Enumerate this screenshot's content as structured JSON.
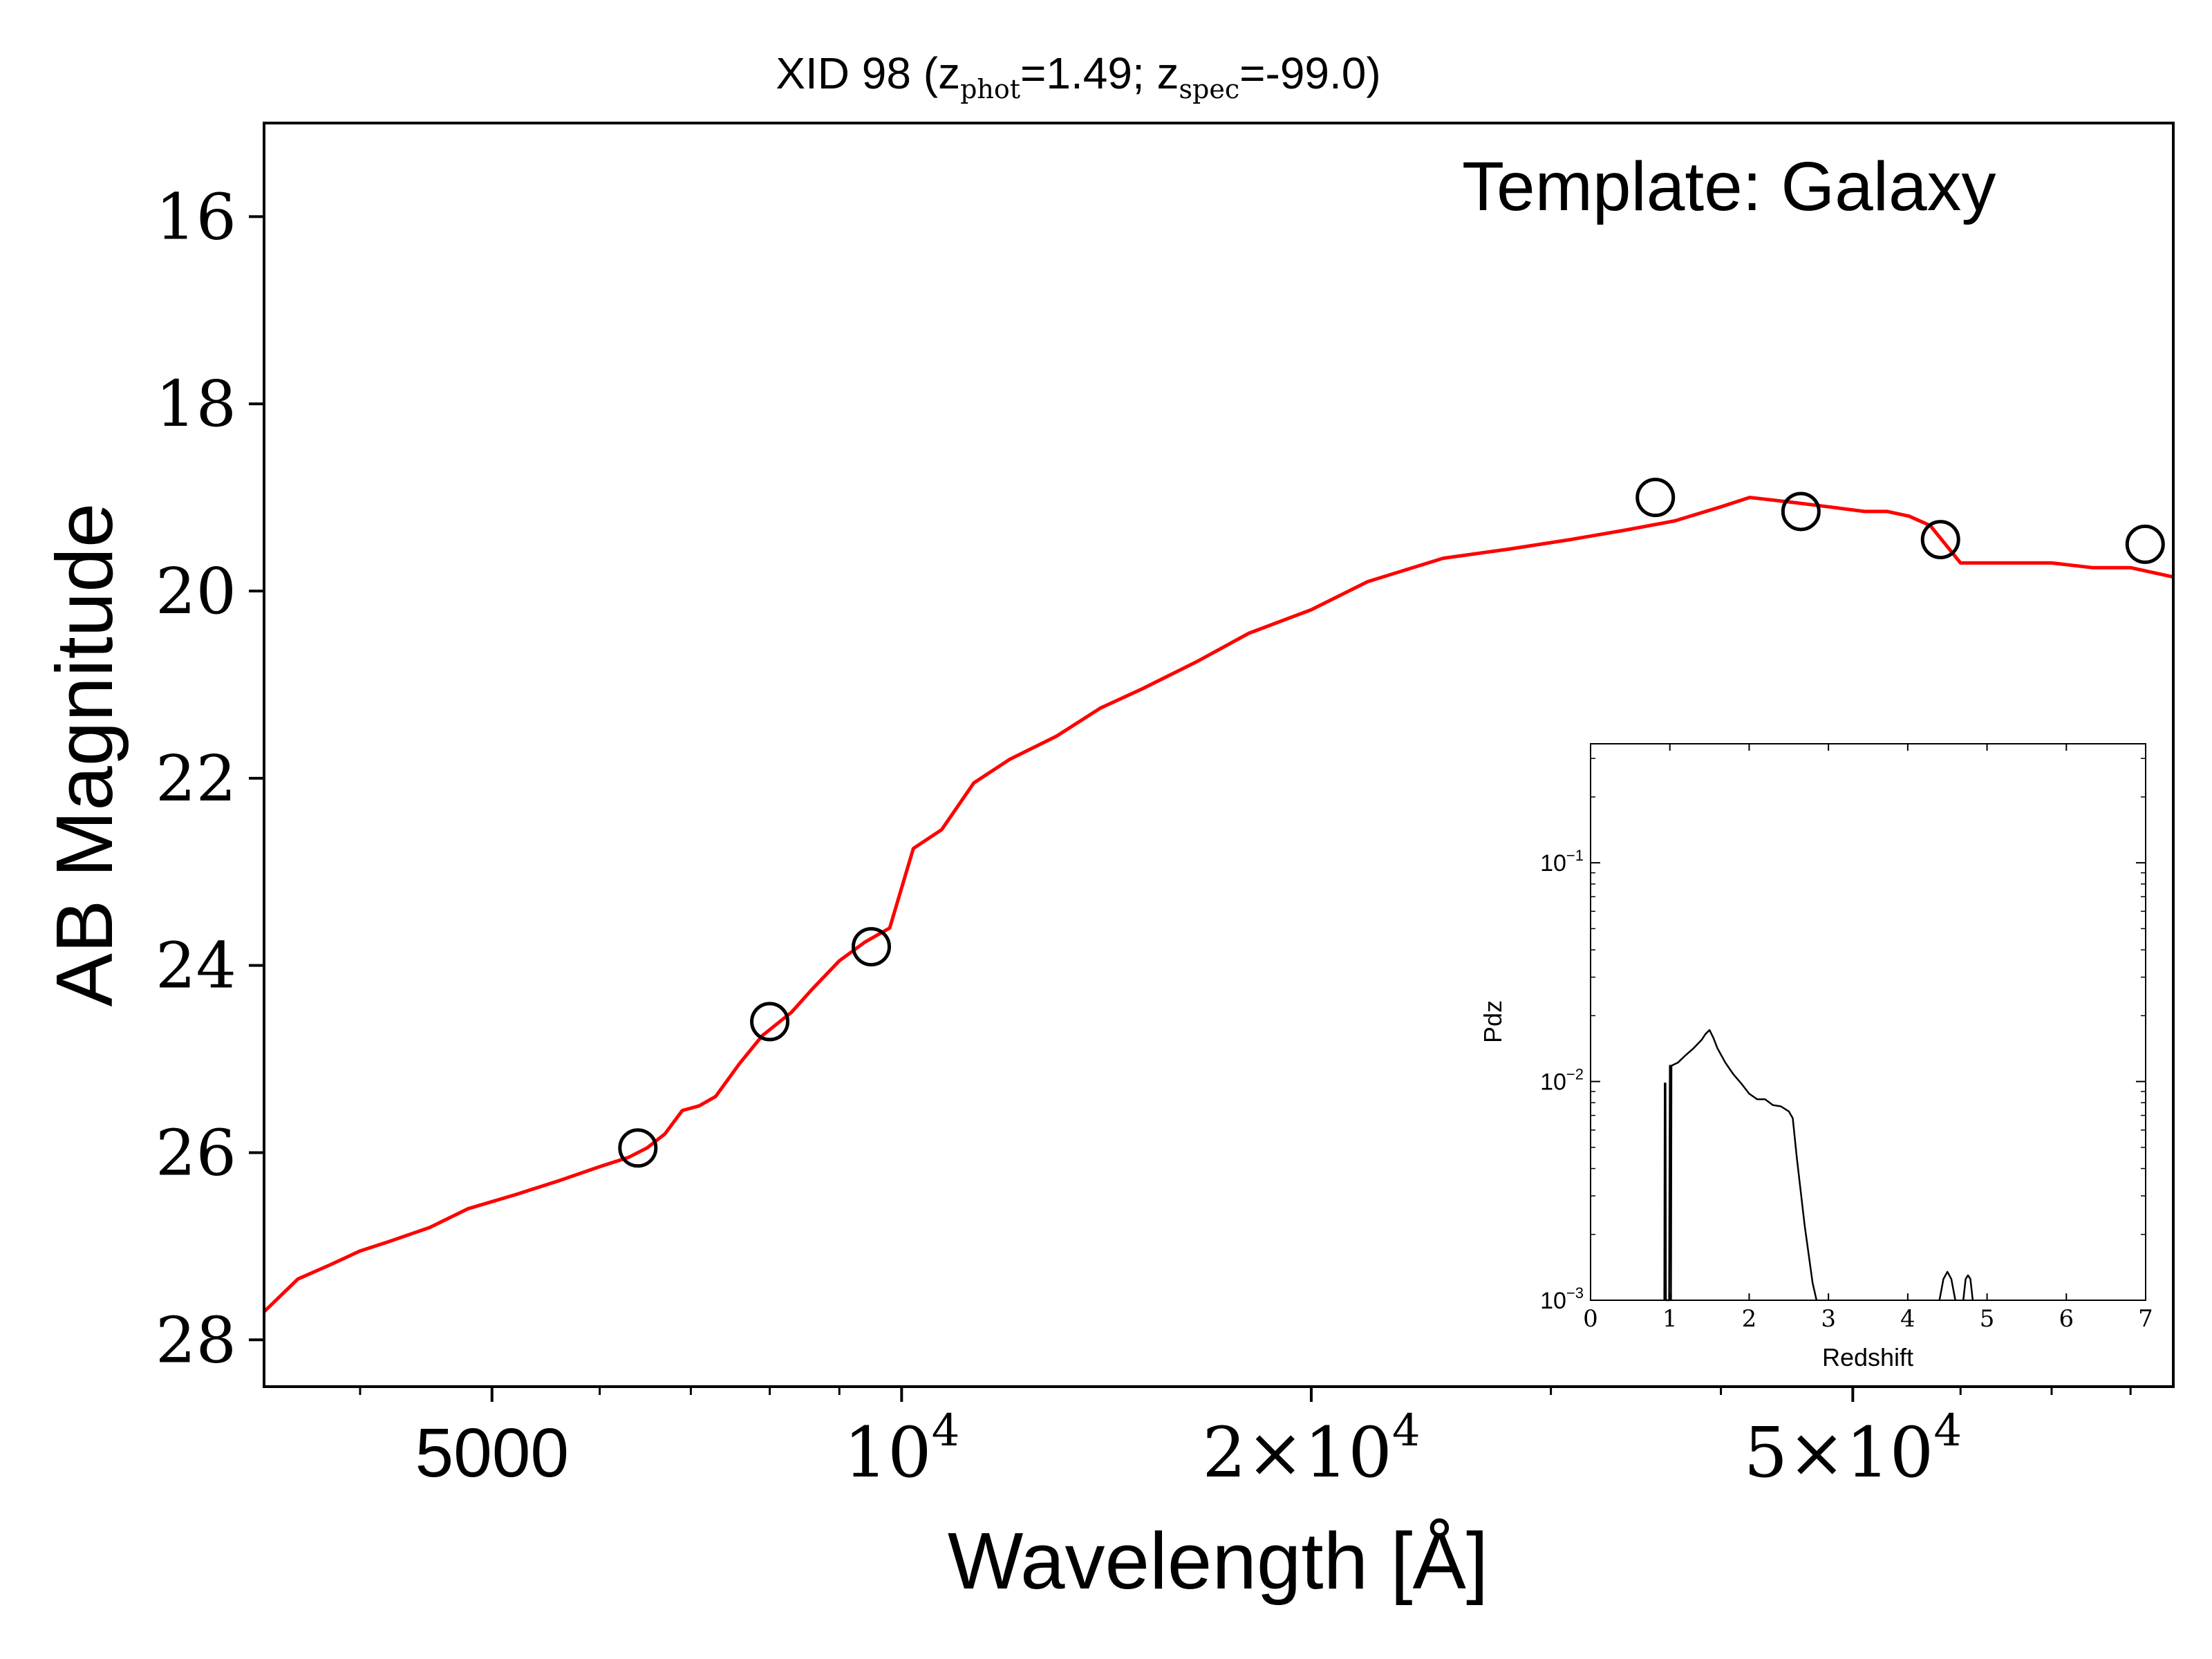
{
  "chart_data": [
    {
      "type": "line",
      "title": {
        "prefix": "XID 98 (z",
        "sub1": "phot",
        "mid": "=1.49; z",
        "sub2": "spec",
        "suffix": "=-99.0)"
      },
      "xlabel": "Wavelength [Å]",
      "ylabel": "AB Magnitude",
      "annotation": "Template: Galaxy",
      "x_scale": "log",
      "xlim": [
        3400,
        86000
      ],
      "ylim": [
        28.5,
        15.0
      ],
      "y_inverted": true,
      "y_ticks": [
        16,
        18,
        20,
        22,
        24,
        26,
        28
      ],
      "x_ticks": [
        {
          "value": 5000,
          "label": "5000"
        },
        {
          "value": 10000,
          "base": "10",
          "exp": "4"
        },
        {
          "value": 20000,
          "base": "2×10",
          "exp": "4"
        },
        {
          "value": 50000,
          "base": "5×10",
          "exp": "4"
        }
      ],
      "x_minor_ticks": [
        4000,
        6000,
        7000,
        8000,
        9000,
        30000,
        40000,
        60000,
        70000,
        80000
      ],
      "colors": {
        "model": "#ff0000",
        "photometry": "#000000"
      },
      "series": [
        {
          "style": "line",
          "x": [
            3400,
            3600,
            3800,
            4000,
            4200,
            4500,
            4800,
            5200,
            5600,
            6000,
            6300,
            6500,
            6700,
            6900,
            7100,
            7300,
            7600,
            7900,
            8300,
            8600,
            9000,
            9400,
            9800,
            10200,
            10700,
            11300,
            12000,
            13000,
            14000,
            15000,
            16500,
            18000,
            20000,
            22000,
            25000,
            28000,
            31000,
            34000,
            37000,
            40000,
            42000,
            45000,
            48000,
            51000,
            53000,
            55000,
            57000,
            60000,
            65000,
            70000,
            75000,
            80000,
            86000
          ],
          "y": [
            27.7,
            27.35,
            27.2,
            27.05,
            26.95,
            26.8,
            26.6,
            26.45,
            26.3,
            26.15,
            26.05,
            25.95,
            25.8,
            25.55,
            25.5,
            25.4,
            25.05,
            24.75,
            24.5,
            24.25,
            23.95,
            23.75,
            23.6,
            22.75,
            22.55,
            22.05,
            21.8,
            21.55,
            21.25,
            21.05,
            20.75,
            20.45,
            20.2,
            19.9,
            19.65,
            19.55,
            19.45,
            19.35,
            19.25,
            19.1,
            19.0,
            19.05,
            19.1,
            19.15,
            19.15,
            19.2,
            19.3,
            19.7,
            19.7,
            19.7,
            19.75,
            19.75,
            19.85
          ]
        },
        {
          "style": "markers",
          "x": [
            6400,
            8000,
            9500,
            35800,
            45800,
            58000,
            82000
          ],
          "y": [
            25.95,
            24.6,
            23.8,
            19.0,
            19.15,
            19.45,
            19.5
          ]
        }
      ]
    },
    {
      "type": "line",
      "xlabel": "Redshift",
      "ylabel": "Pdz",
      "y_scale": "log",
      "xlim": [
        0,
        7
      ],
      "ylim": [
        0.001,
        0.35
      ],
      "x_ticks": [
        "0",
        "1",
        "2",
        "3",
        "4",
        "5",
        "6",
        "7"
      ],
      "y_ticks": [
        {
          "value": 0.1,
          "base": "10",
          "exp": "−1"
        },
        {
          "value": 0.01,
          "base": "10",
          "exp": "−2"
        },
        {
          "value": 0.001,
          "base": "10",
          "exp": "−3"
        }
      ],
      "series": [
        {
          "x": [
            0.93,
            0.935,
            0.945,
            0.95,
            0.99,
            1.0,
            1.01,
            1.015,
            1.02,
            1.1,
            1.2,
            1.3,
            1.4,
            1.45,
            1.5,
            1.55,
            1.6,
            1.7,
            1.8,
            1.9,
            2.0,
            2.1,
            2.2,
            2.3,
            2.4,
            2.5,
            2.55,
            2.6,
            2.7,
            2.8,
            2.85
          ],
          "y": [
            0.001,
            0.0098,
            0.0098,
            0.001,
            0.001,
            0.0118,
            0.0118,
            0.001,
            0.0118,
            0.0122,
            0.0132,
            0.0142,
            0.0155,
            0.0165,
            0.0172,
            0.0158,
            0.0142,
            0.0122,
            0.0108,
            0.0098,
            0.0088,
            0.0083,
            0.0083,
            0.0078,
            0.0077,
            0.0073,
            0.0068,
            0.0045,
            0.0022,
            0.0012,
            0.001
          ]
        },
        {
          "x": [
            4.4,
            4.45,
            4.5,
            4.55,
            4.6
          ],
          "y": [
            0.001,
            0.00125,
            0.00135,
            0.00125,
            0.001
          ]
        },
        {
          "x": [
            4.7,
            4.73,
            4.76,
            4.79,
            4.82
          ],
          "y": [
            0.001,
            0.00125,
            0.0013,
            0.00125,
            0.001
          ]
        }
      ]
    }
  ]
}
